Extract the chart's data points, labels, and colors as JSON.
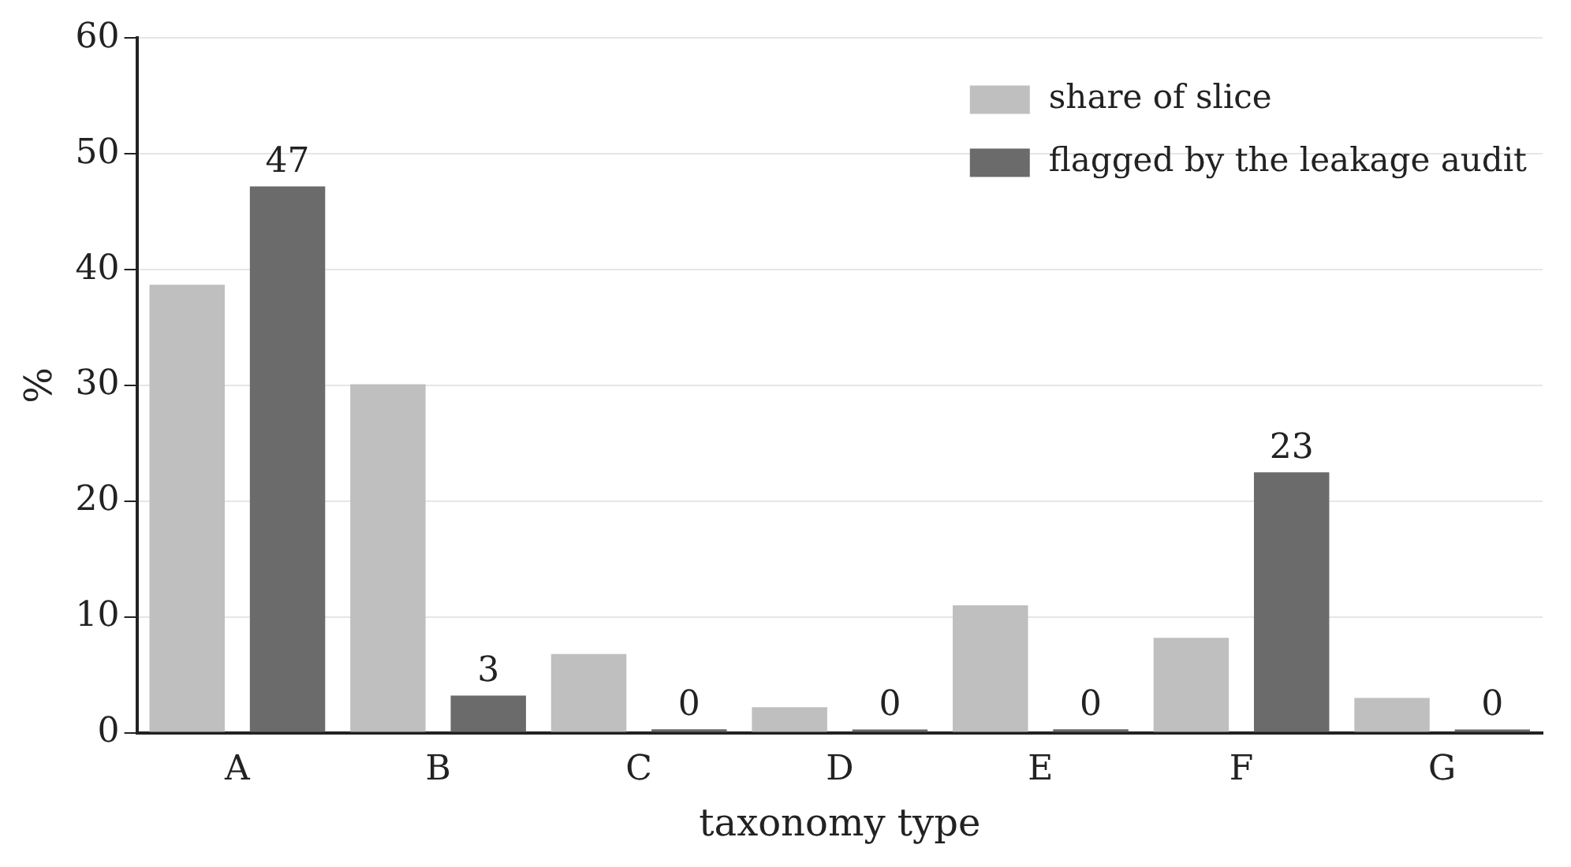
{
  "chart_data": {
    "type": "bar",
    "xlabel": "taxonomy type",
    "ylabel": "%",
    "categories": [
      "A",
      "B",
      "C",
      "D",
      "E",
      "F",
      "G"
    ],
    "series": [
      {
        "name": "share of slice",
        "color": "#bfbfbf",
        "values": [
          38.7,
          30.1,
          6.8,
          2.2,
          11.0,
          8.2,
          3.0
        ]
      },
      {
        "name": "flagged by the leakage audit",
        "color": "#6b6b6b",
        "values": [
          47.2,
          3.2,
          0.3,
          0,
          0.3,
          22.5,
          0
        ],
        "value_labels": [
          "47",
          "3",
          "0",
          "0",
          "0",
          "23",
          "0"
        ]
      }
    ],
    "ylim": [
      0,
      60
    ],
    "yticks": [
      0,
      10,
      20,
      30,
      40,
      50,
      60
    ],
    "grid": "y",
    "legend": "top right"
  }
}
